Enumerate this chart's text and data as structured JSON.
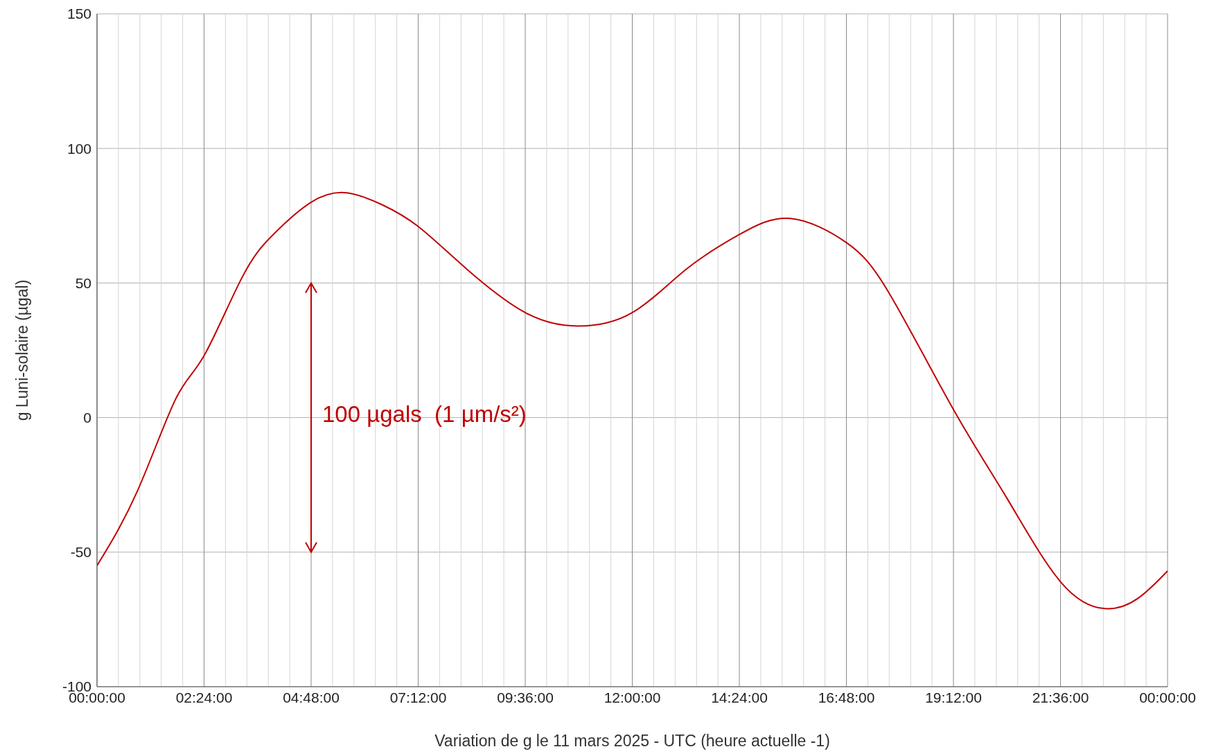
{
  "chart_data": {
    "type": "line",
    "xlabel": "Variation de g le 11 mars 2025 - UTC (heure actuelle -1)",
    "ylabel": "g  Luni-solaire (µgal)",
    "annotations": [
      "100 µgals  (1 µm/s²)"
    ],
    "x": [
      "2025-03-11T00:00",
      "2025-03-11T00:54",
      "2025-03-11T01:46",
      "2025-03-11T02:24",
      "2025-03-11T03:15",
      "2025-03-11T03:57",
      "2025-03-11T04:48",
      "2025-03-11T05:36",
      "2025-03-11T06:24",
      "2025-03-11T07:12",
      "2025-03-11T08:18",
      "2025-03-11T09:36",
      "2025-03-11T10:46",
      "2025-03-11T12:00",
      "2025-03-11T13:12",
      "2025-03-11T14:24",
      "2025-03-11T15:33",
      "2025-03-11T16:48",
      "2025-03-11T17:46",
      "2025-03-11T19:12",
      "2025-03-11T20:24",
      "2025-03-11T21:36",
      "2025-03-11T22:36",
      "2025-03-11T23:21",
      "2025-03-12T00:00"
    ],
    "series": [
      {
        "color": "#c00000",
        "values": [
          -55,
          -27.5,
          7,
          23,
          52,
          68,
          80,
          83.5,
          79,
          71,
          55,
          39,
          34,
          39,
          55,
          68,
          74,
          65,
          46,
          3,
          -30,
          -61,
          -71,
          -67,
          -57
        ]
      }
    ],
    "xlim": [
      "2025-03-11T00:00",
      "2025-03-12T00:00"
    ],
    "xticks": [
      {
        "value": "2025-03-11T00:00",
        "label": "00:00:00"
      },
      {
        "value": "2025-03-11T00:28:48",
        "label": null
      },
      {
        "value": "2025-03-11T00:57:36",
        "label": null
      },
      {
        "value": "2025-03-11T01:26:24",
        "label": null
      },
      {
        "value": "2025-03-11T01:55:12",
        "label": null
      },
      {
        "value": "2025-03-11T02:24",
        "label": "02:24:00"
      },
      {
        "value": "2025-03-11T02:52:48",
        "label": null
      },
      {
        "value": "2025-03-11T03:21:36",
        "label": null
      },
      {
        "value": "2025-03-11T03:50:24",
        "label": null
      },
      {
        "value": "2025-03-11T04:19:12",
        "label": null
      },
      {
        "value": "2025-03-11T04:48",
        "label": "04:48:00"
      },
      {
        "value": "2025-03-11T05:16:48",
        "label": null
      },
      {
        "value": "2025-03-11T05:45:36",
        "label": null
      },
      {
        "value": "2025-03-11T06:14:24",
        "label": null
      },
      {
        "value": "2025-03-11T06:43:12",
        "label": null
      },
      {
        "value": "2025-03-11T07:12",
        "label": "07:12:00"
      },
      {
        "value": "2025-03-11T07:40:48",
        "label": null
      },
      {
        "value": "2025-03-11T08:09:36",
        "label": null
      },
      {
        "value": "2025-03-11T08:38:24",
        "label": null
      },
      {
        "value": "2025-03-11T09:07:12",
        "label": null
      },
      {
        "value": "2025-03-11T09:36",
        "label": "09:36:00"
      },
      {
        "value": "2025-03-11T10:04:48",
        "label": null
      },
      {
        "value": "2025-03-11T10:33:36",
        "label": null
      },
      {
        "value": "2025-03-11T11:02:24",
        "label": null
      },
      {
        "value": "2025-03-11T11:31:12",
        "label": null
      },
      {
        "value": "2025-03-11T12:00",
        "label": "12:00:00"
      },
      {
        "value": "2025-03-11T12:28:48",
        "label": null
      },
      {
        "value": "2025-03-11T12:57:36",
        "label": null
      },
      {
        "value": "2025-03-11T13:26:24",
        "label": null
      },
      {
        "value": "2025-03-11T13:55:12",
        "label": null
      },
      {
        "value": "2025-03-11T14:24",
        "label": "14:24:00"
      },
      {
        "value": "2025-03-11T14:52:48",
        "label": null
      },
      {
        "value": "2025-03-11T15:21:36",
        "label": null
      },
      {
        "value": "2025-03-11T15:50:24",
        "label": null
      },
      {
        "value": "2025-03-11T16:19:12",
        "label": null
      },
      {
        "value": "2025-03-11T16:48",
        "label": "16:48:00"
      },
      {
        "value": "2025-03-11T17:16:48",
        "label": null
      },
      {
        "value": "2025-03-11T17:45:36",
        "label": null
      },
      {
        "value": "2025-03-11T18:14:24",
        "label": null
      },
      {
        "value": "2025-03-11T18:43:12",
        "label": null
      },
      {
        "value": "2025-03-11T19:12",
        "label": "19:12:00"
      },
      {
        "value": "2025-03-11T19:40:48",
        "label": null
      },
      {
        "value": "2025-03-11T20:09:36",
        "label": null
      },
      {
        "value": "2025-03-11T20:38:24",
        "label": null
      },
      {
        "value": "2025-03-11T21:07:12",
        "label": null
      },
      {
        "value": "2025-03-11T21:36",
        "label": "21:36:00"
      },
      {
        "value": "2025-03-11T22:04:48",
        "label": null
      },
      {
        "value": "2025-03-11T22:33:36",
        "label": null
      },
      {
        "value": "2025-03-11T23:02:24",
        "label": null
      },
      {
        "value": "2025-03-11T23:31:12",
        "label": null
      },
      {
        "value": "2025-03-12T00:00",
        "label": "00:00:00"
      }
    ],
    "ylim": [
      -100,
      150
    ],
    "yticks": [
      -100,
      -50,
      0,
      50,
      100,
      150
    ],
    "grid": true,
    "marker": "none",
    "line_style": "solid",
    "legend": false
  }
}
